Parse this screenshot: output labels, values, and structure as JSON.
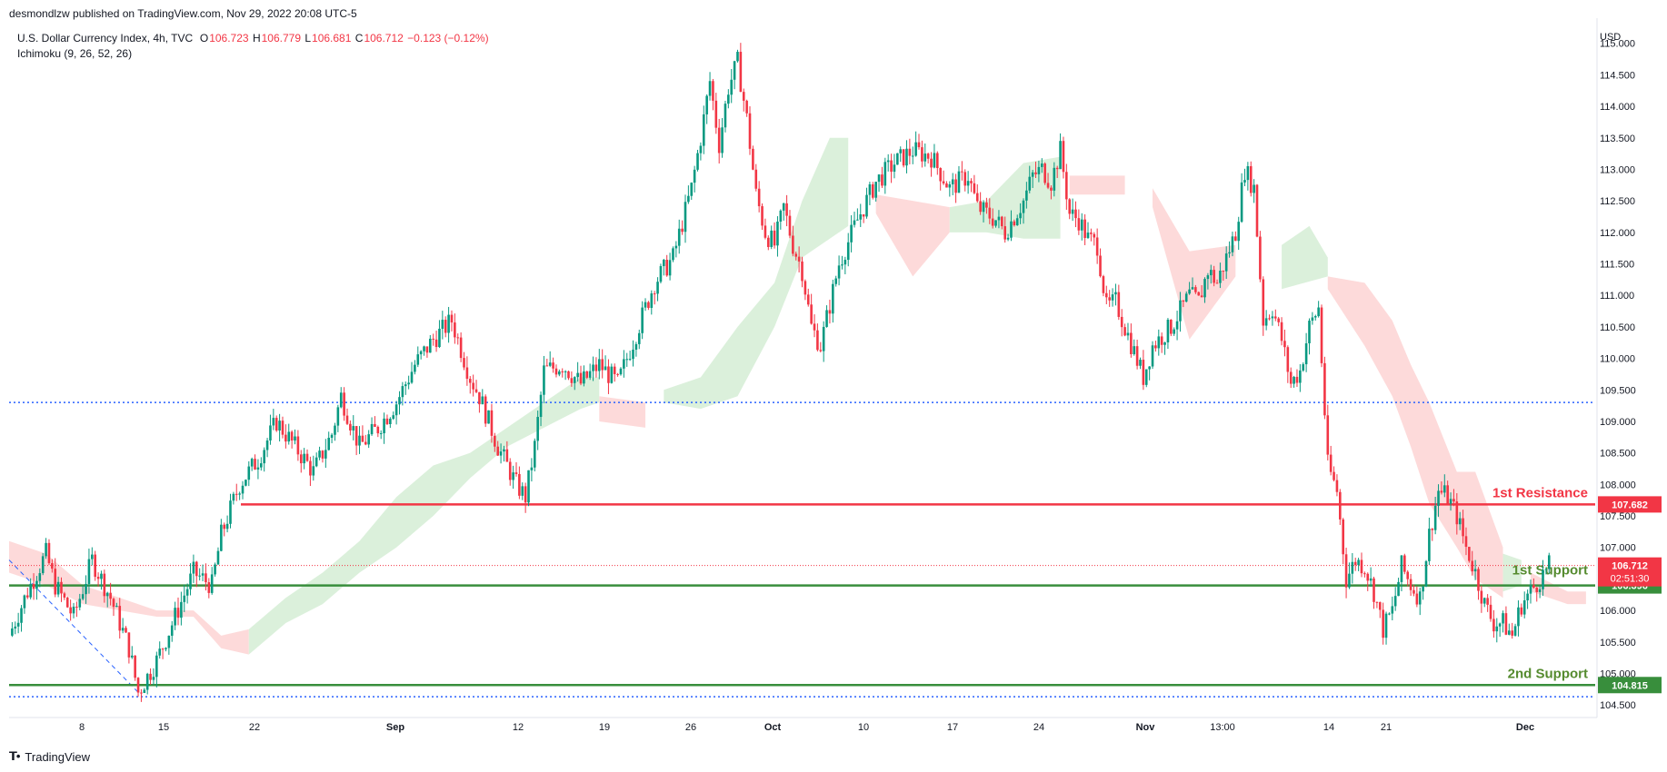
{
  "header": {
    "published": "desmondlzw published on TradingView.com, Nov 29, 2022 20:08 UTC-5"
  },
  "legend": {
    "symbol": "U.S. Dollar Currency Index, 4h, TVC",
    "o_label": "O",
    "o": "106.723",
    "h_label": "H",
    "h": "106.779",
    "l_label": "L",
    "l": "106.681",
    "c_label": "C",
    "c": "106.712",
    "change": "−0.123 (−0.12%)",
    "indicator": "Ichimoku (9, 26, 52, 26)"
  },
  "footer": {
    "logo_icon": "tradingview-logo-icon",
    "brand": "TradingView"
  },
  "colors": {
    "up": "#089981",
    "down": "#f23645",
    "resistance": "#f23645",
    "support": "#388e3c",
    "cloud_bull": "#d9efd9",
    "cloud_bear": "#fdd8d8",
    "dotted": "#2962ff"
  },
  "chart_data": {
    "type": "candlestick",
    "title": "U.S. Dollar Currency Index, 4h, TVC",
    "ylabel": "USD",
    "ylim": [
      104.3,
      115.4
    ],
    "y_ticks": [
      "115.000",
      "114.500",
      "114.000",
      "113.500",
      "113.000",
      "112.500",
      "112.000",
      "111.500",
      "111.000",
      "110.500",
      "110.000",
      "109.500",
      "109.000",
      "108.500",
      "108.000",
      "107.500",
      "107.000",
      "106.500",
      "106.000",
      "105.500",
      "105.000",
      "104.500"
    ],
    "x_ticks": [
      "8",
      "15",
      "22",
      "Sep",
      "12",
      "19",
      "26",
      "Oct",
      "10",
      "17",
      "24",
      "Nov",
      "13:00",
      "14",
      "21",
      "Dec"
    ],
    "price_path": [
      [
        0,
        105.6
      ],
      [
        2,
        106.3
      ],
      [
        4,
        106.9
      ],
      [
        5,
        106.4
      ],
      [
        7,
        105.9
      ],
      [
        9,
        106.8
      ],
      [
        11,
        106.2
      ],
      [
        13,
        105.4
      ],
      [
        14,
        104.7
      ],
      [
        16,
        105.2
      ],
      [
        18,
        105.9
      ],
      [
        20,
        106.6
      ],
      [
        22,
        106.4
      ],
      [
        23,
        107.2
      ],
      [
        25,
        108.0
      ],
      [
        27,
        108.4
      ],
      [
        29,
        109.0
      ],
      [
        31,
        108.6
      ],
      [
        33,
        108.2
      ],
      [
        35,
        108.8
      ],
      [
        36,
        109.4
      ],
      [
        38,
        108.6
      ],
      [
        40,
        108.9
      ],
      [
        42,
        109.3
      ],
      [
        44,
        109.9
      ],
      [
        46,
        110.3
      ],
      [
        48,
        110.6
      ],
      [
        50,
        109.7
      ],
      [
        51,
        109.4
      ],
      [
        53,
        108.6
      ],
      [
        55,
        108.0
      ],
      [
        56,
        107.8
      ],
      [
        57,
        108.6
      ],
      [
        58,
        109.8
      ],
      [
        60,
        109.9
      ],
      [
        62,
        109.6
      ],
      [
        64,
        109.9
      ],
      [
        66,
        109.6
      ],
      [
        68,
        110.4
      ],
      [
        70,
        111.2
      ],
      [
        72,
        111.6
      ],
      [
        74,
        112.7
      ],
      [
        75,
        113.5
      ],
      [
        76,
        114.4
      ],
      [
        77,
        113.4
      ],
      [
        78,
        114.3
      ],
      [
        79,
        114.7
      ],
      [
        80,
        113.8
      ],
      [
        81,
        112.6
      ],
      [
        82,
        112.0
      ],
      [
        83,
        111.8
      ],
      [
        84,
        112.4
      ],
      [
        85,
        111.8
      ],
      [
        86,
        111.4
      ],
      [
        87,
        110.5
      ],
      [
        88,
        110.2
      ],
      [
        90,
        111.5
      ],
      [
        92,
        112.2
      ],
      [
        94,
        112.8
      ],
      [
        96,
        113.1
      ],
      [
        98,
        113.3
      ],
      [
        100,
        113.2
      ],
      [
        102,
        112.7
      ],
      [
        104,
        112.9
      ],
      [
        105,
        112.4
      ],
      [
        107,
        112.2
      ],
      [
        108,
        112.0
      ],
      [
        110,
        112.5
      ],
      [
        111,
        112.9
      ],
      [
        112,
        113.0
      ],
      [
        113,
        112.8
      ],
      [
        114,
        113.3
      ],
      [
        115,
        112.3
      ],
      [
        116,
        112.2
      ],
      [
        117,
        111.9
      ],
      [
        118,
        111.8
      ],
      [
        119,
        110.8
      ],
      [
        120,
        110.9
      ],
      [
        122,
        110.1
      ],
      [
        123,
        109.7
      ],
      [
        124,
        110.2
      ],
      [
        126,
        110.5
      ],
      [
        128,
        111.0
      ],
      [
        129,
        110.9
      ],
      [
        130,
        111.4
      ],
      [
        131,
        111.2
      ],
      [
        133,
        112.0
      ],
      [
        134,
        113.0
      ],
      [
        135,
        112.7
      ],
      [
        136,
        110.6
      ],
      [
        137,
        110.8
      ],
      [
        138,
        110.3
      ],
      [
        139,
        109.6
      ],
      [
        140,
        109.8
      ],
      [
        141,
        110.5
      ],
      [
        142,
        110.8
      ],
      [
        143,
        108.3
      ],
      [
        144,
        107.9
      ],
      [
        145,
        106.5
      ],
      [
        146,
        106.8
      ],
      [
        147,
        106.7
      ],
      [
        148,
        106.3
      ],
      [
        149,
        105.7
      ],
      [
        150,
        106.0
      ],
      [
        151,
        106.7
      ],
      [
        152,
        106.4
      ],
      [
        153,
        106.2
      ],
      [
        154,
        107.2
      ],
      [
        155,
        107.9
      ],
      [
        156,
        107.8
      ],
      [
        157,
        107.5
      ],
      [
        158,
        107.0
      ],
      [
        159,
        106.6
      ],
      [
        160,
        106.1
      ],
      [
        161,
        105.8
      ],
      [
        162,
        105.8
      ],
      [
        163,
        105.6
      ],
      [
        164,
        106.1
      ],
      [
        165,
        106.3
      ],
      [
        166,
        106.5
      ],
      [
        167,
        106.7
      ]
    ],
    "cloud": [
      {
        "type": "bear",
        "points": [
          [
            0,
            107.1
          ],
          [
            4,
            106.9
          ],
          [
            8,
            106.4
          ],
          [
            12,
            106.2
          ],
          [
            16,
            106.0
          ],
          [
            20,
            106.0
          ],
          [
            23,
            105.6
          ],
          [
            26,
            105.7
          ],
          [
            26,
            105.3
          ],
          [
            23,
            105.4
          ],
          [
            20,
            105.9
          ],
          [
            16,
            105.9
          ],
          [
            12,
            106.0
          ],
          [
            8,
            106.1
          ],
          [
            4,
            106.4
          ],
          [
            0,
            106.6
          ]
        ]
      },
      {
        "type": "bull",
        "points": [
          [
            26,
            105.7
          ],
          [
            30,
            106.2
          ],
          [
            34,
            106.6
          ],
          [
            38,
            107.1
          ],
          [
            42,
            107.8
          ],
          [
            46,
            108.3
          ],
          [
            50,
            108.5
          ],
          [
            54,
            108.9
          ],
          [
            58,
            109.3
          ],
          [
            62,
            109.7
          ],
          [
            64,
            109.7
          ],
          [
            64,
            109.3
          ],
          [
            62,
            109.2
          ],
          [
            58,
            108.9
          ],
          [
            54,
            108.6
          ],
          [
            50,
            108.1
          ],
          [
            46,
            107.5
          ],
          [
            42,
            107.0
          ],
          [
            38,
            106.6
          ],
          [
            34,
            106.1
          ],
          [
            30,
            105.8
          ],
          [
            26,
            105.3
          ]
        ]
      },
      {
        "type": "bear",
        "points": [
          [
            64,
            109.4
          ],
          [
            69,
            109.3
          ],
          [
            69,
            108.9
          ],
          [
            64,
            109.0
          ]
        ]
      },
      {
        "type": "bull",
        "points": [
          [
            71,
            109.5
          ],
          [
            75,
            109.7
          ],
          [
            79,
            110.5
          ],
          [
            83,
            111.2
          ],
          [
            86,
            112.5
          ],
          [
            89,
            113.5
          ],
          [
            91,
            113.5
          ],
          [
            91,
            112.1
          ],
          [
            89,
            111.9
          ],
          [
            86,
            111.6
          ],
          [
            83,
            110.5
          ],
          [
            79,
            109.4
          ],
          [
            75,
            109.2
          ],
          [
            71,
            109.3
          ]
        ]
      },
      {
        "type": "bear",
        "points": [
          [
            94,
            112.6
          ],
          [
            98,
            112.5
          ],
          [
            102,
            112.4
          ],
          [
            102,
            112.0
          ],
          [
            98,
            111.3
          ],
          [
            94,
            112.3
          ]
        ]
      },
      {
        "type": "bull",
        "points": [
          [
            102,
            112.4
          ],
          [
            106,
            112.5
          ],
          [
            110,
            113.1
          ],
          [
            114,
            113.2
          ],
          [
            114,
            111.9
          ],
          [
            110,
            111.9
          ],
          [
            106,
            112.0
          ],
          [
            102,
            112.0
          ]
        ]
      },
      {
        "type": "bear",
        "points": [
          [
            115,
            112.9
          ],
          [
            121,
            112.9
          ],
          [
            121,
            112.6
          ],
          [
            115,
            112.6
          ]
        ]
      },
      {
        "type": "bear",
        "points": [
          [
            124,
            112.7
          ],
          [
            128,
            111.7
          ],
          [
            133,
            111.8
          ],
          [
            133,
            111.3
          ],
          [
            130,
            110.7
          ],
          [
            128,
            110.3
          ],
          [
            124,
            112.4
          ]
        ]
      },
      {
        "type": "bull",
        "points": [
          [
            138,
            111.8
          ],
          [
            141,
            112.1
          ],
          [
            143,
            111.6
          ],
          [
            143,
            111.3
          ],
          [
            138,
            111.1
          ]
        ]
      },
      {
        "type": "bear",
        "points": [
          [
            143,
            111.3
          ],
          [
            147,
            111.2
          ],
          [
            150,
            110.6
          ],
          [
            152,
            109.9
          ],
          [
            154,
            109.3
          ],
          [
            157,
            108.2
          ],
          [
            159,
            108.2
          ],
          [
            162,
            107.0
          ],
          [
            162,
            106.2
          ],
          [
            159,
            106.5
          ],
          [
            157,
            107.0
          ],
          [
            154,
            107.7
          ],
          [
            152,
            108.6
          ],
          [
            150,
            109.4
          ],
          [
            147,
            110.2
          ],
          [
            143,
            111.1
          ]
        ]
      },
      {
        "type": "bull",
        "points": [
          [
            162,
            106.9
          ],
          [
            164,
            106.8
          ],
          [
            164,
            106.4
          ],
          [
            162,
            106.3
          ]
        ]
      },
      {
        "type": "bear",
        "points": [
          [
            165,
            106.6
          ],
          [
            169,
            106.3
          ],
          [
            171,
            106.3
          ],
          [
            171,
            106.1
          ],
          [
            169,
            106.1
          ],
          [
            165,
            106.3
          ]
        ]
      }
    ],
    "levels": [
      {
        "name": "1st Resistance",
        "value": 107.682,
        "label": "107.682",
        "color": "#f23645",
        "style": "solid"
      },
      {
        "name": "1st Support",
        "value": 106.396,
        "label": "106.396",
        "color": "#388e3c",
        "style": "solid"
      },
      {
        "name": "2nd Support",
        "value": 104.815,
        "label": "104.815",
        "color": "#388e3c",
        "style": "solid"
      }
    ],
    "dotted_levels": [
      109.3,
      104.63
    ],
    "current_price": {
      "value": 106.712,
      "label": "106.712",
      "countdown": "02:51:30"
    }
  }
}
